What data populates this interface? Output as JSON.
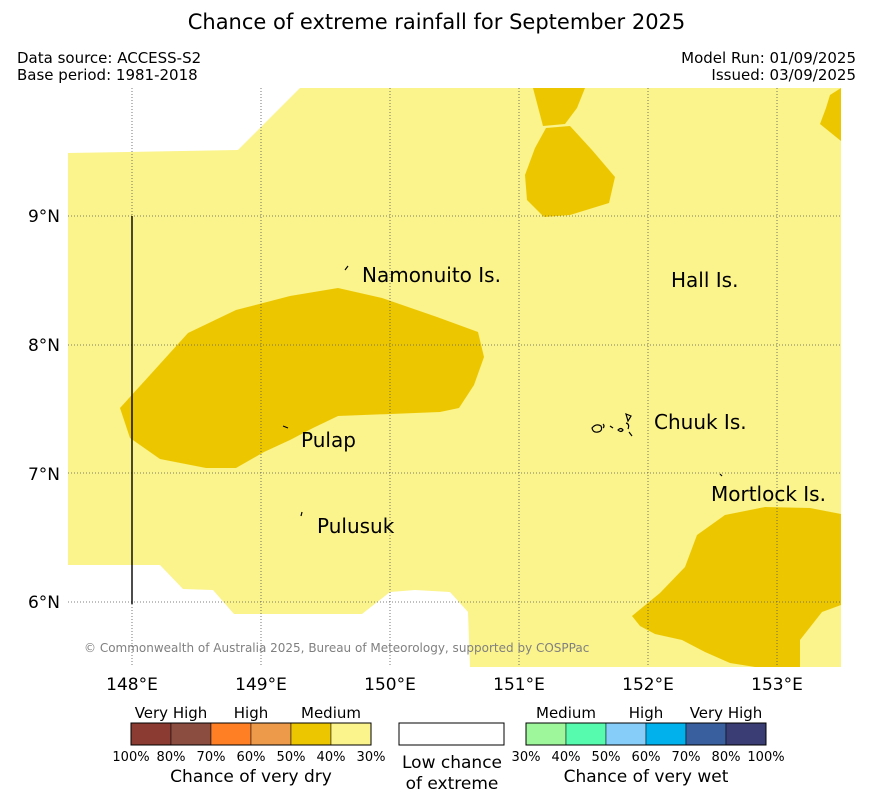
{
  "title": "Chance of extreme rainfall for September 2025",
  "meta": {
    "data_source": "Data source: ACCESS-S2",
    "base_period": "Base period: 1981-2018",
    "model_run": "Model Run: 01/09/2025",
    "issued": "Issued: 03/09/2025"
  },
  "map": {
    "lat_labels": [
      "9°N",
      "8°N",
      "7°N",
      "6°N"
    ],
    "lon_labels": [
      "148°E",
      "149°E",
      "150°E",
      "151°E",
      "152°E",
      "153°E"
    ],
    "places": [
      "Namonuito Is.",
      "Hall Is.",
      "Pulap",
      "Chuuk Is.",
      "Mortlock Is.",
      "Pulusuk"
    ],
    "copyright": "© Commonwealth of Australia 2025, Bureau of Meteorology, supported by COSPPac",
    "colors": {
      "dry_40_50": "#ecc700",
      "dry_30_40": "#fbf38b",
      "ocean": "#ffffff"
    }
  },
  "legend": {
    "dry": {
      "categories": [
        "Very High",
        "High",
        "Medium"
      ],
      "ticks": [
        "100%",
        "80%",
        "70%",
        "60%",
        "50%",
        "40%",
        "30%"
      ],
      "colors": [
        "#8b3b31",
        "#8b4d3f",
        "#ff7f24",
        "#ed9a4a",
        "#ecc700",
        "#fbf38b"
      ],
      "label": "Chance of very dry"
    },
    "neutral": {
      "label_line1": "Low chance",
      "label_line2": "of extreme"
    },
    "wet": {
      "categories": [
        "Medium",
        "High",
        "Very High"
      ],
      "ticks": [
        "30%",
        "40%",
        "50%",
        "60%",
        "70%",
        "80%",
        "100%"
      ],
      "colors": [
        "#9ef79b",
        "#56fbad",
        "#86cdfa",
        "#00b1ec",
        "#3a5f9e",
        "#3a3c74"
      ],
      "label": "Chance of very wet"
    }
  }
}
